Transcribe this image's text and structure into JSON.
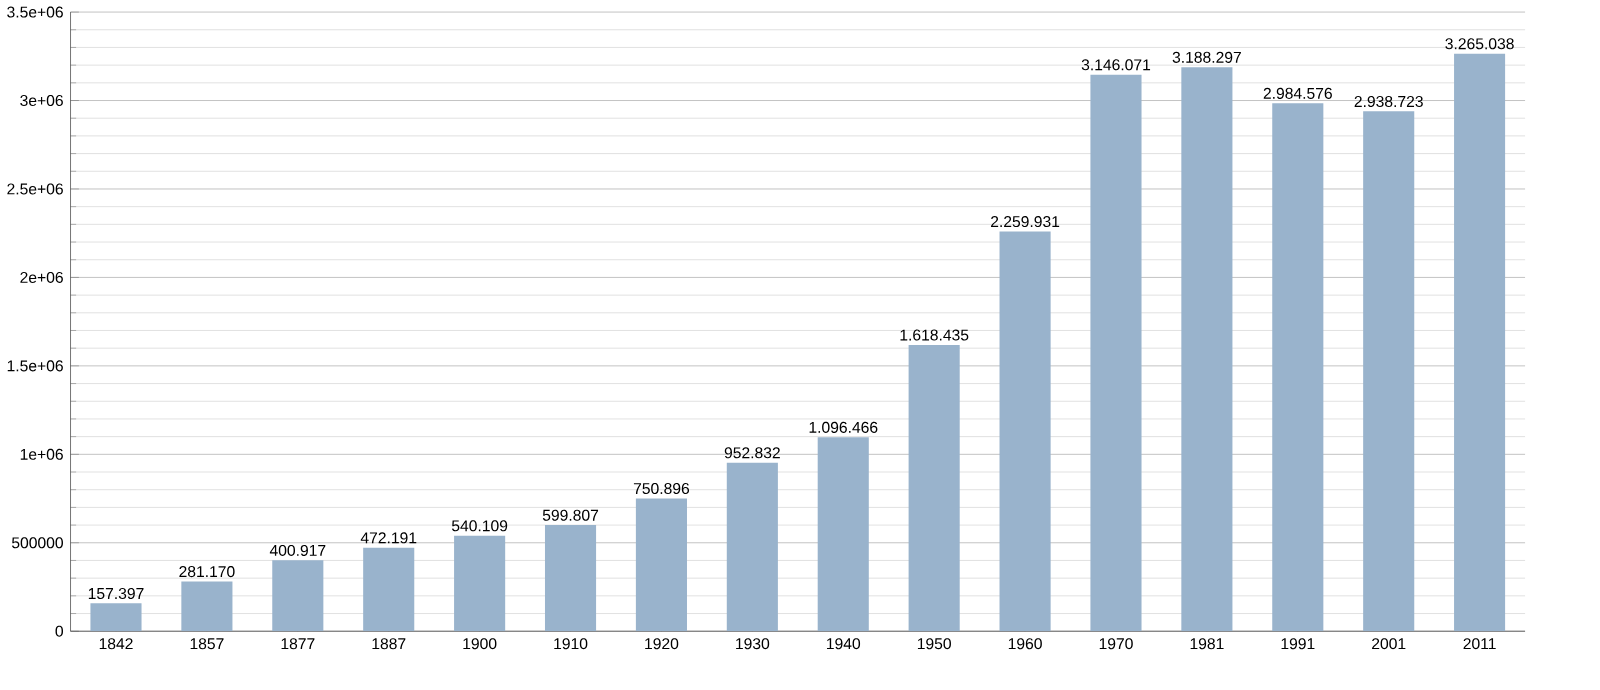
{
  "chart_data": {
    "type": "bar",
    "categories": [
      "1842",
      "1857",
      "1877",
      "1887",
      "1900",
      "1910",
      "1920",
      "1930",
      "1940",
      "1950",
      "1960",
      "1970",
      "1981",
      "1991",
      "2001",
      "2011"
    ],
    "values": [
      157397,
      281170,
      400917,
      472191,
      540109,
      599807,
      750896,
      952832,
      1096466,
      1618435,
      2259931,
      3146071,
      3188297,
      2984576,
      2938723,
      3265038
    ],
    "value_labels": [
      "157.397",
      "281.170",
      "400.917",
      "472.191",
      "540.109",
      "599.807",
      "750.896",
      "952.832",
      "1.096.466",
      "1.618.435",
      "2.259.931",
      "3.146.071",
      "3.188.297",
      "2.984.576",
      "2.938.723",
      "3.265.038"
    ],
    "color": "#99b3cc",
    "ylim": [
      0,
      3500000
    ],
    "yticks": [
      0,
      500000,
      {
        "value": 1000000,
        "label": "1e+06"
      },
      {
        "value": 1500000,
        "label": "1.5e+06"
      },
      {
        "value": 2000000,
        "label": "2e+06"
      },
      {
        "value": 2500000,
        "label": "2.5e+06"
      },
      {
        "value": 3000000,
        "label": "3e+06"
      },
      {
        "value": 3500000,
        "label": "3.5e+06"
      }
    ],
    "grid": "y"
  }
}
